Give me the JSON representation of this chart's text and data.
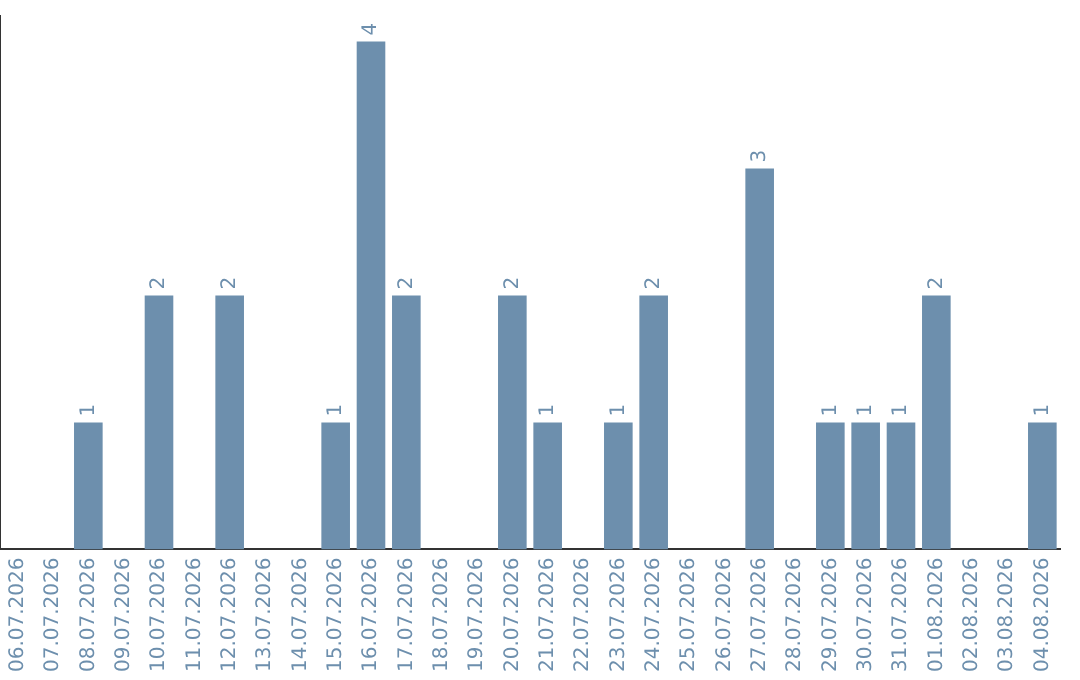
{
  "chart_data": {
    "type": "bar",
    "categories": [
      "06.07.2026",
      "07.07.2026",
      "08.07.2026",
      "09.07.2026",
      "10.07.2026",
      "11.07.2026",
      "12.07.2026",
      "13.07.2026",
      "14.07.2026",
      "15.07.2026",
      "16.07.2026",
      "17.07.2026",
      "18.07.2026",
      "19.07.2026",
      "20.07.2026",
      "21.07.2026",
      "22.07.2026",
      "23.07.2026",
      "24.07.2026",
      "25.07.2026",
      "26.07.2026",
      "27.07.2026",
      "28.07.2026",
      "29.07.2026",
      "30.07.2026",
      "31.07.2026",
      "01.08.2026",
      "02.08.2026",
      "03.08.2026",
      "04.08.2026"
    ],
    "values": [
      0,
      0,
      1,
      0,
      2,
      0,
      2,
      0,
      0,
      1,
      4,
      2,
      0,
      0,
      2,
      1,
      0,
      1,
      2,
      0,
      0,
      3,
      0,
      1,
      1,
      1,
      2,
      0,
      0,
      1
    ],
    "value_labels": [
      null,
      null,
      "1",
      null,
      "2",
      null,
      "2",
      null,
      null,
      "1",
      "4",
      "2",
      null,
      null,
      "2",
      "1",
      null,
      "1",
      "2",
      null,
      null,
      "3",
      null,
      "1",
      "1",
      "1",
      "2",
      null,
      null,
      "1"
    ],
    "color": "#6d8fad",
    "ylim": [
      0,
      4.2
    ],
    "tick_labels": "x",
    "grid": false,
    "legend": false
  }
}
